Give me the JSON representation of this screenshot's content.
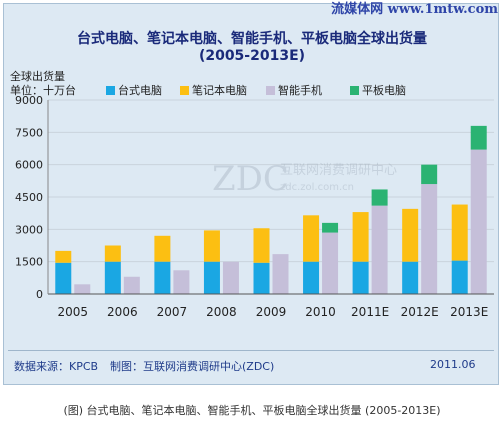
{
  "site_watermark": "流媒体网 www.1mtw.com",
  "title_line1": "台式电脑、笔记本电脑、智能手机、平板电脑全球出货量",
  "title_line2": "(2005-2013E)",
  "unit_line1": "全球出货量",
  "unit_line2": "单位：十万台",
  "footer": {
    "source": "数据来源：KPCB",
    "producer": "制图：互联网消费调研中心(ZDC)",
    "date": "2011.06"
  },
  "caption": "(图) 台式电脑、笔记本电脑、智能手机、平板电脑全球出货量 (2005-2013E)",
  "zdc_watermark": "ZDC",
  "zdc_watermark_cn": "互联网消费调研中心",
  "zdc_watermark_url": "zdc.zol.com.cn",
  "colors": {
    "desktop": "#1aa7e3",
    "notebook": "#fcbf12",
    "smartphone": "#c5bfd9",
    "tablet": "#2bb372"
  },
  "chart_data": {
    "type": "bar",
    "categories": [
      "2005",
      "2006",
      "2007",
      "2008",
      "2009",
      "2010",
      "2011E",
      "2012E",
      "2013E"
    ],
    "ylim": [
      0,
      9000
    ],
    "yticks": [
      "0",
      "1500",
      "3000",
      "4500",
      "6000",
      "7500",
      "9000"
    ],
    "grid": true,
    "legend_position": "top",
    "series": [
      {
        "name": "台式电脑",
        "stacked_with": null,
        "values": [
          1450,
          1500,
          1500,
          1500,
          1450,
          1500,
          1500,
          1500,
          1550
        ]
      },
      {
        "name": "笔记本电脑",
        "stacked_with": "台式电脑",
        "values": [
          550,
          750,
          1200,
          1450,
          1600,
          2150,
          2300,
          2450,
          2600
        ]
      },
      {
        "name": "智能手机",
        "stacked_with": null,
        "values": [
          450,
          800,
          1100,
          1500,
          1850,
          2850,
          4100,
          5100,
          6700
        ]
      },
      {
        "name": "平板电脑",
        "stacked_with": "智能手机",
        "values": [
          0,
          0,
          0,
          0,
          0,
          450,
          750,
          900,
          1100
        ]
      }
    ]
  }
}
